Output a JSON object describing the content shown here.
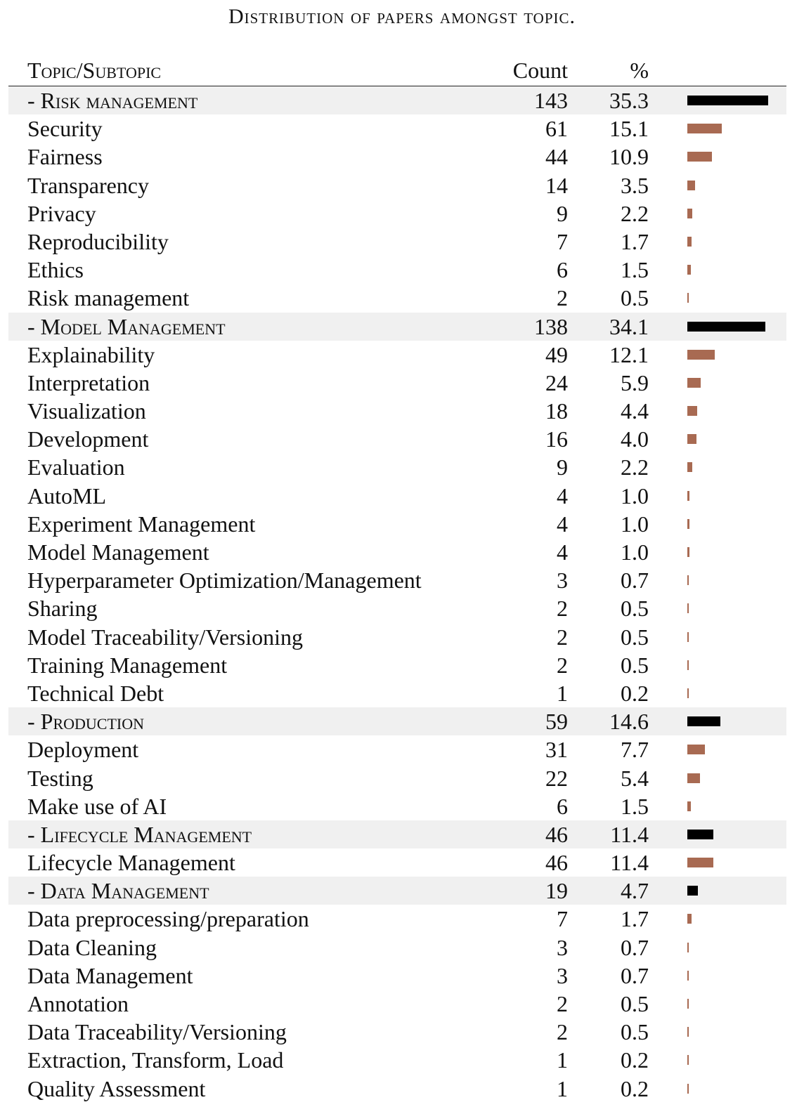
{
  "caption": "Distribution of papers amongst topic.",
  "header": {
    "label": "Topic/Subtopic",
    "count": "Count",
    "pct": "%"
  },
  "colors": {
    "group_bar": "#000000",
    "sub_bar": "#a86a52",
    "group_bg": "#f0f0f0"
  },
  "rows": [
    {
      "type": "group",
      "label": "- Risk management",
      "count": "143",
      "pct": "35.3",
      "value": 35.3
    },
    {
      "type": "sub",
      "label": "Security",
      "count": "61",
      "pct": "15.1",
      "value": 15.1
    },
    {
      "type": "sub",
      "label": "Fairness",
      "count": "44",
      "pct": "10.9",
      "value": 10.9
    },
    {
      "type": "sub",
      "label": "Transparency",
      "count": "14",
      "pct": "3.5",
      "value": 3.5
    },
    {
      "type": "sub",
      "label": "Privacy",
      "count": "9",
      "pct": "2.2",
      "value": 2.2
    },
    {
      "type": "sub",
      "label": "Reproducibility",
      "count": "7",
      "pct": "1.7",
      "value": 1.7
    },
    {
      "type": "sub",
      "label": "Ethics",
      "count": "6",
      "pct": "1.5",
      "value": 1.5
    },
    {
      "type": "sub",
      "label": "Risk management",
      "count": "2",
      "pct": "0.5",
      "value": 0.5
    },
    {
      "type": "group",
      "label": "- Model Management",
      "count": "138",
      "pct": "34.1",
      "value": 34.1
    },
    {
      "type": "sub",
      "label": "Explainability",
      "count": "49",
      "pct": "12.1",
      "value": 12.1
    },
    {
      "type": "sub",
      "label": "Interpretation",
      "count": "24",
      "pct": "5.9",
      "value": 5.9
    },
    {
      "type": "sub",
      "label": "Visualization",
      "count": "18",
      "pct": "4.4",
      "value": 4.4
    },
    {
      "type": "sub",
      "label": "Development",
      "count": "16",
      "pct": "4.0",
      "value": 4.0
    },
    {
      "type": "sub",
      "label": "Evaluation",
      "count": "9",
      "pct": "2.2",
      "value": 2.2
    },
    {
      "type": "sub",
      "label": "AutoML",
      "count": "4",
      "pct": "1.0",
      "value": 1.0
    },
    {
      "type": "sub",
      "label": "Experiment Management",
      "count": "4",
      "pct": "1.0",
      "value": 1.0
    },
    {
      "type": "sub",
      "label": "Model Management",
      "count": "4",
      "pct": "1.0",
      "value": 1.0
    },
    {
      "type": "sub",
      "label": "Hyperparameter Optimization/Management",
      "count": "3",
      "pct": "0.7",
      "value": 0.7
    },
    {
      "type": "sub",
      "label": "Sharing",
      "count": "2",
      "pct": "0.5",
      "value": 0.5
    },
    {
      "type": "sub",
      "label": "Model Traceability/Versioning",
      "count": "2",
      "pct": "0.5",
      "value": 0.5
    },
    {
      "type": "sub",
      "label": "Training Management",
      "count": "2",
      "pct": "0.5",
      "value": 0.5
    },
    {
      "type": "sub",
      "label": "Technical Debt",
      "count": "1",
      "pct": "0.2",
      "value": 0.2
    },
    {
      "type": "group",
      "label": "- Production",
      "count": "59",
      "pct": "14.6",
      "value": 14.6
    },
    {
      "type": "sub",
      "label": "Deployment",
      "count": "31",
      "pct": "7.7",
      "value": 7.7
    },
    {
      "type": "sub",
      "label": "Testing",
      "count": "22",
      "pct": "5.4",
      "value": 5.4
    },
    {
      "type": "sub",
      "label": "Make use of AI",
      "count": "6",
      "pct": "1.5",
      "value": 1.5
    },
    {
      "type": "group",
      "label": "- Lifecycle Management",
      "count": "46",
      "pct": "11.4",
      "value": 11.4
    },
    {
      "type": "sub",
      "label": "Lifecycle Management",
      "count": "46",
      "pct": "11.4",
      "value": 11.4
    },
    {
      "type": "group",
      "label": "- Data Management",
      "count": "19",
      "pct": "4.7",
      "value": 4.7
    },
    {
      "type": "sub",
      "label": "Data preprocessing/preparation",
      "count": "7",
      "pct": "1.7",
      "value": 1.7
    },
    {
      "type": "sub",
      "label": "Data Cleaning",
      "count": "3",
      "pct": "0.7",
      "value": 0.7
    },
    {
      "type": "sub",
      "label": "Data Management",
      "count": "3",
      "pct": "0.7",
      "value": 0.7
    },
    {
      "type": "sub",
      "label": "Annotation",
      "count": "2",
      "pct": "0.5",
      "value": 0.5
    },
    {
      "type": "sub",
      "label": "Data Traceability/Versioning",
      "count": "2",
      "pct": "0.5",
      "value": 0.5
    },
    {
      "type": "sub",
      "label": "Extraction, Transform, Load",
      "count": "1",
      "pct": "0.2",
      "value": 0.2
    },
    {
      "type": "sub",
      "label": "Quality Assessment",
      "count": "1",
      "pct": "0.2",
      "value": 0.2
    }
  ]
}
